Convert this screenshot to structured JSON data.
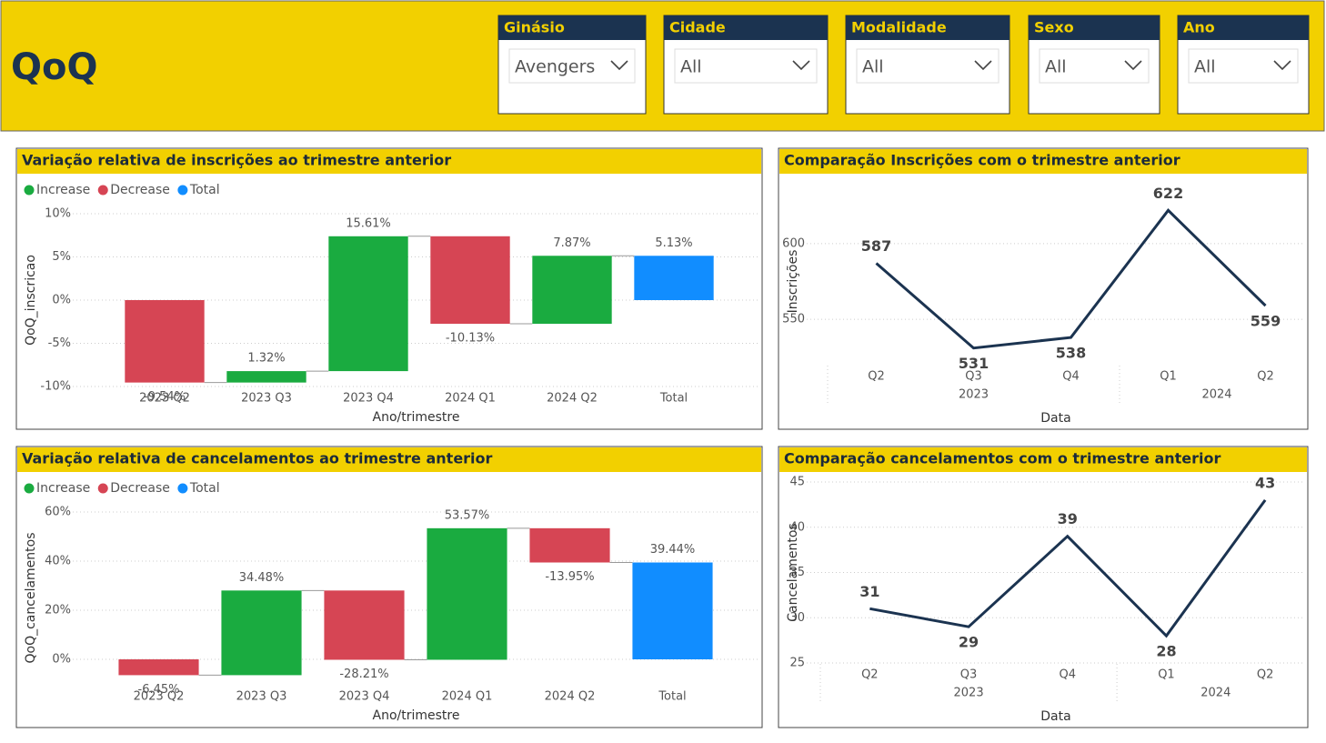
{
  "header": {
    "title": "QoQ"
  },
  "slicers": [
    {
      "label": "Ginásio",
      "value": "Avengers"
    },
    {
      "label": "Cidade",
      "value": "All"
    },
    {
      "label": "Modalidade",
      "value": "All"
    },
    {
      "label": "Sexo",
      "value": "All"
    },
    {
      "label": "Ano",
      "value": "All"
    }
  ],
  "chart_data": [
    {
      "type": "waterfall",
      "title": "Variação relativa de inscrições ao trimestre anterior",
      "x_label": "Ano/trimestre",
      "y_label": "QoQ_inscricao",
      "legend": [
        {
          "name": "Increase",
          "color": "#1aab40"
        },
        {
          "name": "Decrease",
          "color": "#d64554"
        },
        {
          "name": "Total",
          "color": "#118dff"
        }
      ],
      "categories": [
        "2023 Q2",
        "2023 Q3",
        "2023 Q4",
        "2024 Q1",
        "2024 Q2",
        "Total"
      ],
      "values": [
        -9.54,
        1.32,
        15.61,
        -10.13,
        7.87,
        5.13
      ],
      "value_labels": [
        "-9.54%",
        "1.32%",
        "15.61%",
        "-10.13%",
        "7.87%",
        "5.13%"
      ],
      "ylim": [
        -10,
        10
      ],
      "yticks": [
        {
          "value": -10,
          "label": "-10%"
        },
        {
          "value": -5,
          "label": "-5%"
        },
        {
          "value": 0,
          "label": "0%"
        },
        {
          "value": 5,
          "label": "5%"
        },
        {
          "value": 10,
          "label": "10%"
        }
      ],
      "grid": true
    },
    {
      "type": "line",
      "title": "Comparação Inscrições com o trimestre anterior",
      "x_label": "Data",
      "y_label": "Inscrições",
      "categories": [
        "Q2",
        "Q3",
        "Q4",
        "Q1",
        "Q2"
      ],
      "years": [
        "2023",
        "2023",
        "2023",
        "2024",
        "2024"
      ],
      "values": [
        587,
        531,
        538,
        622,
        559
      ],
      "color": "#1b3350",
      "ylim": [
        520,
        630
      ],
      "yticks": [
        550,
        600
      ],
      "grid": true
    },
    {
      "type": "waterfall",
      "title": "Variação relativa de cancelamentos ao trimestre anterior",
      "x_label": "Ano/trimestre",
      "y_label": "QoQ_cancelamentos",
      "legend": [
        {
          "name": "Increase",
          "color": "#1aab40"
        },
        {
          "name": "Decrease",
          "color": "#d64554"
        },
        {
          "name": "Total",
          "color": "#118dff"
        }
      ],
      "categories": [
        "2023 Q2",
        "2023 Q3",
        "2023 Q4",
        "2024 Q1",
        "2024 Q2",
        "Total"
      ],
      "values": [
        -6.45,
        34.48,
        -28.21,
        53.57,
        -13.95,
        39.44
      ],
      "value_labels": [
        "-6.45%",
        "34.48%",
        "-28.21%",
        "53.57%",
        "-13.95%",
        "39.44%"
      ],
      "ylim": [
        -10,
        60
      ],
      "yticks": [
        {
          "value": 0,
          "label": "0%"
        },
        {
          "value": 20,
          "label": "20%"
        },
        {
          "value": 40,
          "label": "40%"
        },
        {
          "value": 60,
          "label": "60%"
        }
      ],
      "grid": true
    },
    {
      "type": "line",
      "title": "Comparação cancelamentos com o trimestre anterior",
      "x_label": "Data",
      "y_label": "Cancelamentos",
      "categories": [
        "Q2",
        "Q3",
        "Q4",
        "Q1",
        "Q2"
      ],
      "years": [
        "2023",
        "2023",
        "2023",
        "2024",
        "2024"
      ],
      "values": [
        31,
        29,
        39,
        28,
        43
      ],
      "color": "#1b3350",
      "ylim": [
        25,
        45
      ],
      "yticks": [
        25,
        30,
        35,
        40,
        45
      ],
      "grid": true
    }
  ]
}
